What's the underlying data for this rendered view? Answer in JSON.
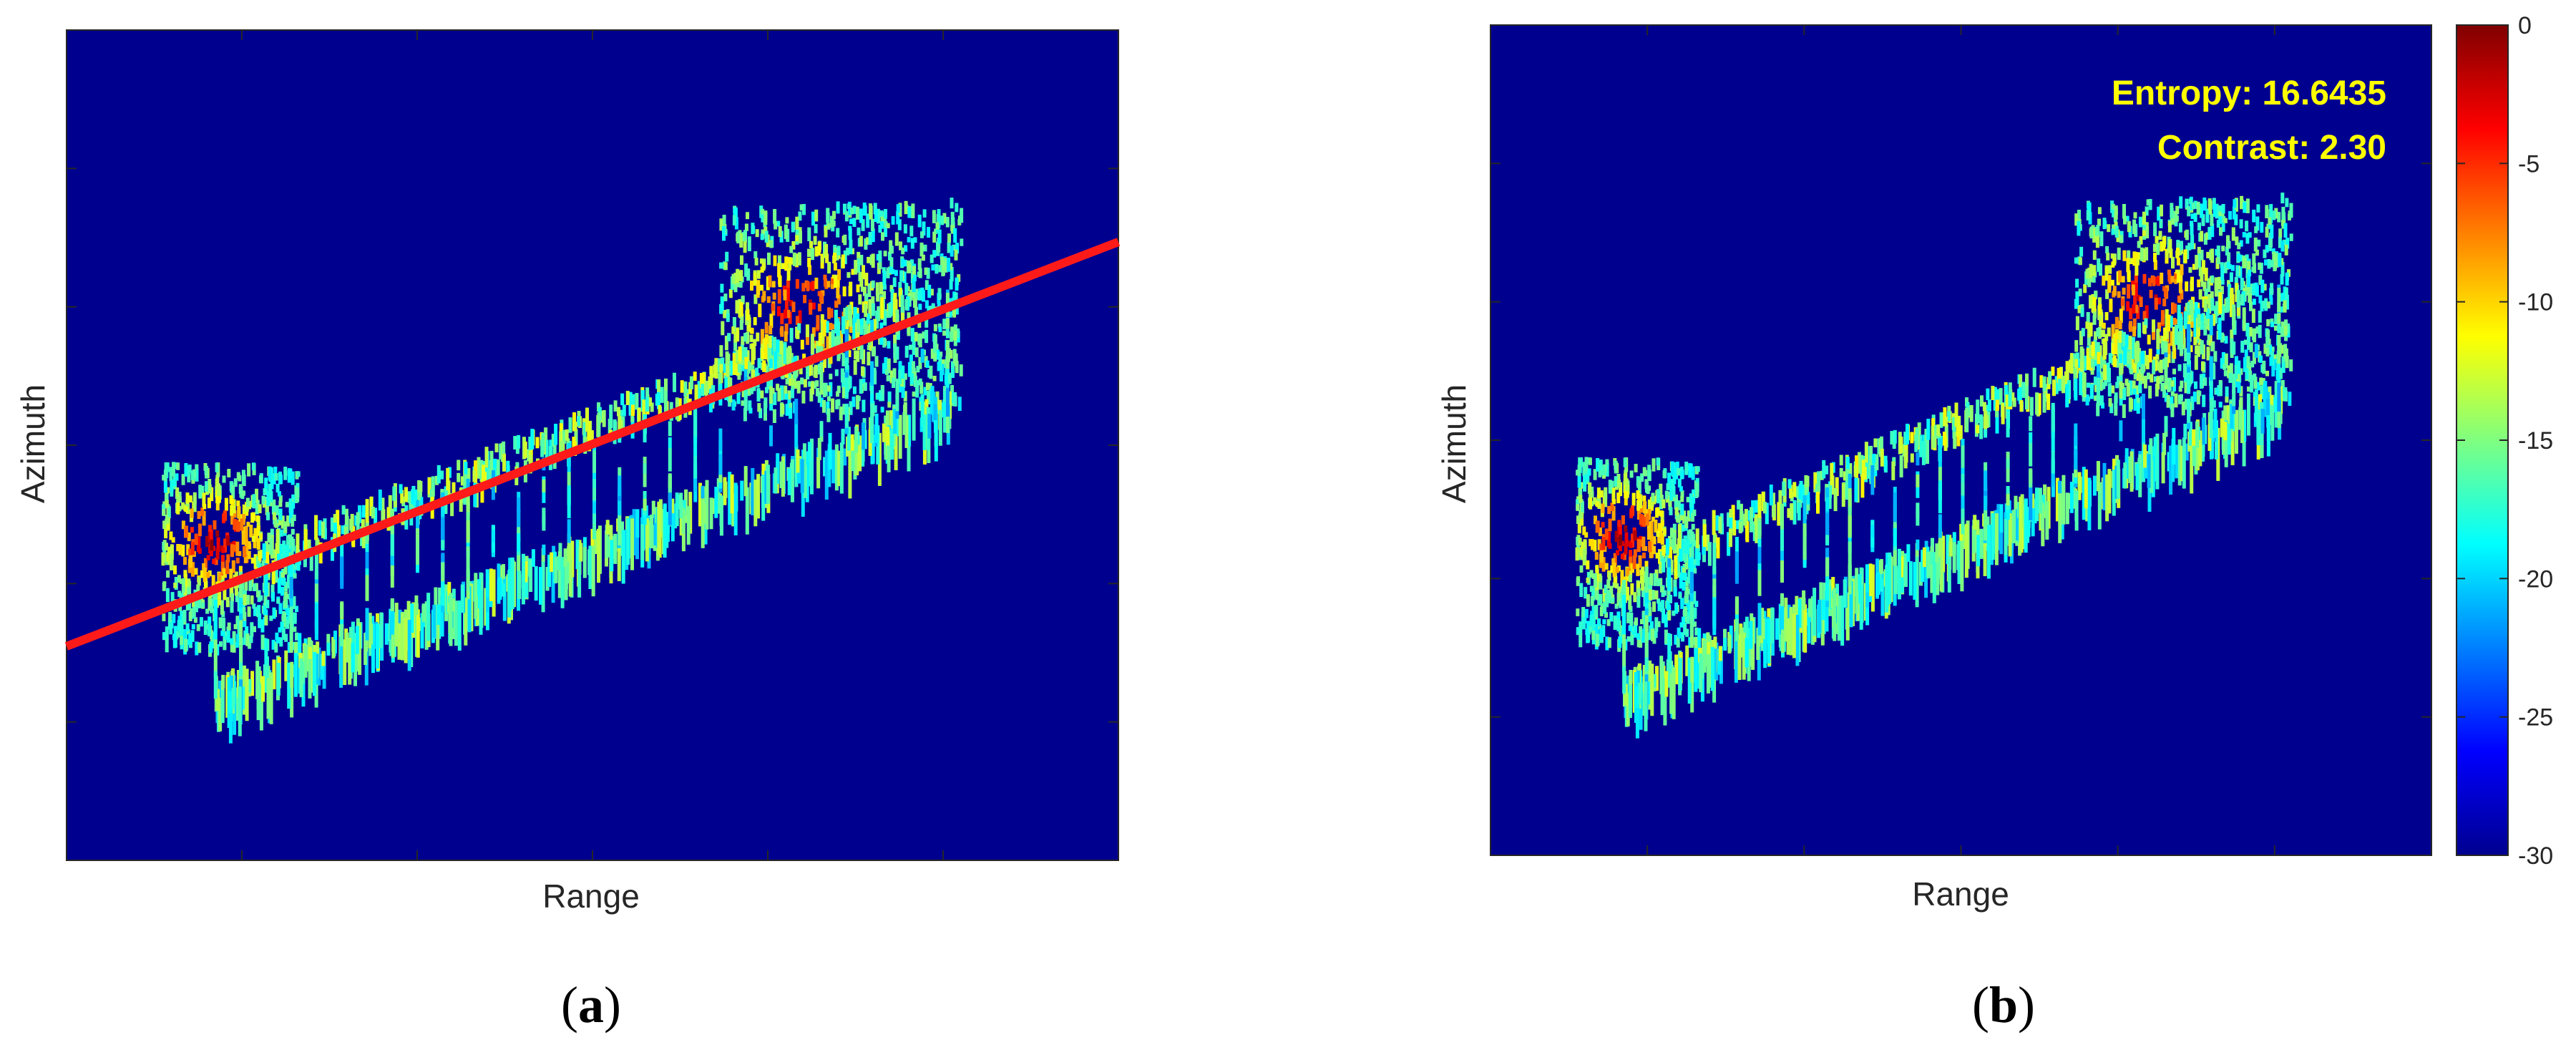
{
  "chart_data": [
    {
      "type": "heatmap",
      "panel": "a",
      "xlabel": "Range",
      "ylabel": "Azimuth",
      "overlay_line_color": "#ff1a1a",
      "colormap": "jet",
      "background_color": "#00008f",
      "panel_label": {
        "open": "(",
        "letter": "a",
        "close": ")"
      }
    },
    {
      "type": "heatmap",
      "panel": "b",
      "xlabel": "Range",
      "ylabel": "Azimuth",
      "annotations": [
        "Entropy: 16.6435",
        "Contrast: 2.30"
      ],
      "annotation_color": "#ffff00",
      "colormap": "jet",
      "background_color": "#00008f",
      "colorbar": {
        "ticks": [
          "0",
          "-5",
          "-10",
          "-15",
          "-20",
          "-25",
          "-30"
        ],
        "range": [
          -30,
          0
        ]
      },
      "panel_label": {
        "open": "(",
        "letter": "b",
        "close": ")"
      }
    }
  ]
}
